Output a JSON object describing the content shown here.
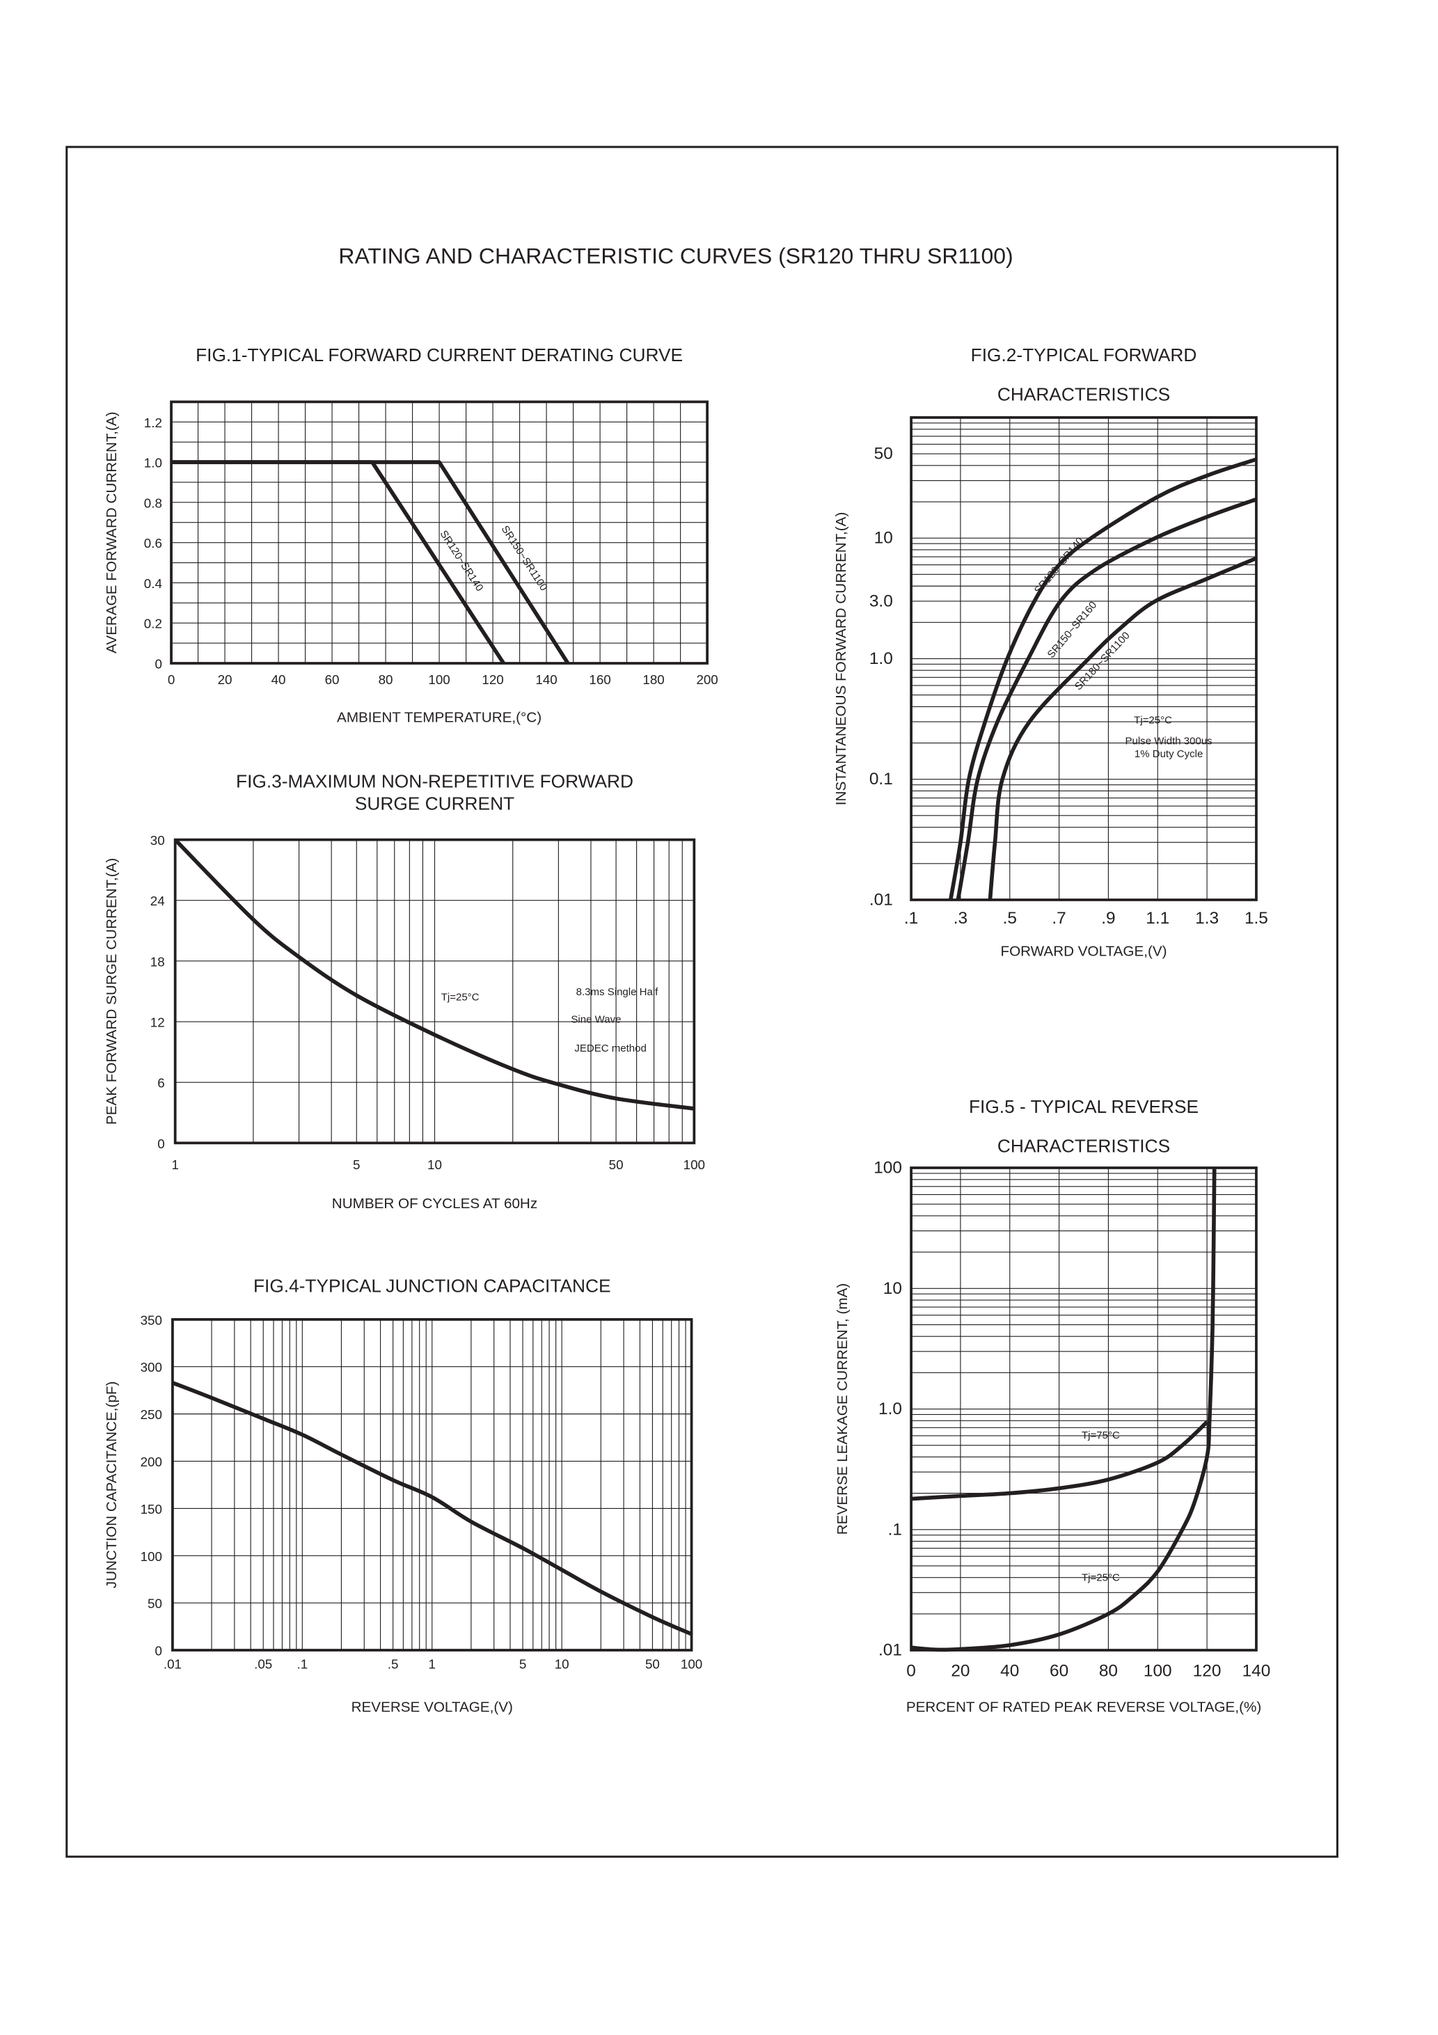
{
  "page": {
    "title": "RATING AND CHARACTERISTIC CURVES (SR120 THRU SR1100)"
  },
  "chart_data": [
    {
      "type": "line",
      "title_lines": [
        "FIG.1-TYPICAL FORWARD CURRENT DERATING CURVE"
      ],
      "xlabel": "AMBIENT TEMPERATURE,(°C)",
      "ylabel": "AVERAGE FORWARD CURRENT,(A)",
      "xscale": "linear",
      "yscale": "linear",
      "xlim": [
        0,
        200
      ],
      "ylim": [
        0,
        1.3
      ],
      "xticks": [
        0,
        20,
        40,
        60,
        80,
        100,
        120,
        140,
        160,
        180,
        200
      ],
      "xtick_labels": [
        "0",
        "20",
        "40",
        "60",
        "80",
        "100",
        "120",
        "140",
        "160",
        "180",
        "200"
      ],
      "yticks": [
        0,
        0.2,
        0.4,
        0.6,
        0.8,
        1.0,
        1.2
      ],
      "ytick_labels": [
        "0",
        "0.2",
        "0.4",
        "0.6",
        "0.8",
        "1.0",
        "1.2"
      ],
      "grid": true,
      "series": [
        {
          "name": "SR120~SR140",
          "x": [
            0,
            75,
            124
          ],
          "y": [
            1.0,
            1.0,
            0
          ]
        },
        {
          "name": "SR150~SR1100",
          "x": [
            0,
            100,
            148
          ],
          "y": [
            1.0,
            1.0,
            0
          ]
        }
      ],
      "annotations": []
    },
    {
      "type": "line",
      "title_lines": [
        "FIG.2-TYPICAL FORWARD",
        "CHARACTERISTICS"
      ],
      "xlabel": "FORWARD VOLTAGE,(V)",
      "ylabel": "INSTANTANEOUS FORWARD CURRENT,(A)",
      "xscale": "linear",
      "yscale": "log",
      "xlim": [
        0.1,
        1.5
      ],
      "ylim": [
        0.01,
        100
      ],
      "xticks": [
        0.1,
        0.3,
        0.5,
        0.7,
        0.9,
        1.1,
        1.3,
        1.5
      ],
      "xtick_labels": [
        ".1",
        ".3",
        ".5",
        ".7",
        ".9",
        "1.1",
        "1.3",
        "1.5"
      ],
      "yticks": [
        0.01,
        0.1,
        1.0,
        3.0,
        10,
        50
      ],
      "ytick_labels": [
        ".01",
        "0.1",
        "1.0",
        "3.0",
        "10",
        "50"
      ],
      "grid": true,
      "series": [
        {
          "name": "SR120~SR140",
          "x": [
            0.26,
            0.3,
            0.334,
            0.4,
            0.49,
            0.6,
            0.7,
            0.83,
            1.1,
            1.3,
            1.5
          ],
          "y": [
            0.01,
            0.03,
            0.1,
            0.3,
            1.0,
            3.0,
            6.0,
            10,
            22,
            33,
            45
          ]
        },
        {
          "name": "SR150~SR160",
          "x": [
            0.29,
            0.33,
            0.37,
            0.45,
            0.575,
            0.706,
            0.85,
            1.09,
            1.3,
            1.5
          ],
          "y": [
            0.01,
            0.03,
            0.1,
            0.3,
            1.0,
            3.0,
            5.5,
            10,
            15,
            21
          ]
        },
        {
          "name": "SR180~SR1100",
          "x": [
            0.42,
            0.44,
            0.47,
            0.58,
            0.82,
            0.95,
            1.09,
            1.3,
            1.5
          ],
          "y": [
            0.01,
            0.03,
            0.1,
            0.3,
            1.0,
            1.8,
            3.0,
            4.6,
            6.8
          ]
        }
      ],
      "annotations": [
        "Tj=25°C",
        "Pulse Width 300us",
        "1% Duty Cycle"
      ]
    },
    {
      "type": "line",
      "title_lines": [
        "FIG.3-MAXIMUM NON-REPETITIVE FORWARD",
        "SURGE CURRENT"
      ],
      "xlabel": "NUMBER OF CYCLES AT 60Hz",
      "ylabel": "PEAK FORWARD SURGE CURRENT,(A)",
      "xscale": "log",
      "yscale": "linear",
      "xlim": [
        1,
        100
      ],
      "ylim": [
        0,
        30
      ],
      "xticks": [
        1,
        5,
        10,
        50,
        100
      ],
      "xtick_labels": [
        "1",
        "5",
        "10",
        "50",
        "100"
      ],
      "yticks": [
        0,
        6,
        12,
        18,
        24,
        30
      ],
      "ytick_labels": [
        "0",
        "6",
        "12",
        "18",
        "24",
        "30"
      ],
      "grid": true,
      "series": [
        {
          "x": [
            1,
            2,
            3,
            5,
            10,
            20,
            30,
            50,
            100
          ],
          "y": [
            30,
            22.1,
            18.4,
            14.6,
            10.7,
            7.3,
            5.8,
            4.4,
            3.4
          ]
        }
      ],
      "annotations": [
        "Tj=25°C",
        "8.3ms Single Half",
        "Sine Wave",
        "JEDEC method"
      ]
    },
    {
      "type": "line",
      "title_lines": [
        "FIG.4-TYPICAL JUNCTION CAPACITANCE"
      ],
      "xlabel": "REVERSE VOLTAGE,(V)",
      "ylabel": "JUNCTION CAPACITANCE,(pF)",
      "xscale": "log",
      "yscale": "linear",
      "xlim": [
        0.01,
        100
      ],
      "ylim": [
        0,
        350
      ],
      "xticks": [
        0.01,
        0.05,
        0.1,
        0.5,
        1,
        5,
        10,
        50,
        100
      ],
      "xtick_labels": [
        ".01",
        ".05",
        ".1",
        ".5",
        "1",
        "5",
        "10",
        "50",
        "100"
      ],
      "yticks": [
        0,
        50,
        100,
        150,
        200,
        250,
        300,
        350
      ],
      "ytick_labels": [
        "0",
        "50",
        "100",
        "150",
        "200",
        "250",
        "300",
        "350"
      ],
      "grid": true,
      "series": [
        {
          "x": [
            0.01,
            0.02,
            0.05,
            0.1,
            0.2,
            0.5,
            1,
            2,
            5,
            10,
            20,
            50,
            100
          ],
          "y": [
            283,
            267,
            245,
            228,
            207,
            180,
            162,
            136,
            108,
            85,
            62,
            35,
            17
          ]
        }
      ],
      "annotations": []
    },
    {
      "type": "line",
      "title_lines": [
        "FIG.5 - TYPICAL REVERSE",
        "CHARACTERISTICS"
      ],
      "xlabel": "PERCENT OF RATED PEAK REVERSE VOLTAGE,(%)",
      "ylabel": "REVERSE LEAKAGE CURRENT, (mA)",
      "xscale": "linear",
      "yscale": "log",
      "xlim": [
        0,
        140
      ],
      "ylim": [
        0.01,
        100
      ],
      "xticks": [
        0,
        20,
        40,
        60,
        80,
        100,
        120,
        140
      ],
      "xtick_labels": [
        "0",
        "20",
        "40",
        "60",
        "80",
        "100",
        "120",
        "140"
      ],
      "yticks": [
        0.01,
        0.1,
        1.0,
        10,
        100
      ],
      "ytick_labels": [
        ".01",
        ".1",
        "1.0",
        "10",
        "100"
      ],
      "grid": true,
      "series": [
        {
          "name": "Tj=75°C",
          "x": [
            0,
            20,
            40,
            60,
            80,
            100,
            110,
            120
          ],
          "y": [
            0.18,
            0.19,
            0.2,
            0.22,
            0.26,
            0.36,
            0.5,
            0.78
          ]
        },
        {
          "name": "Tj=25°C",
          "x": [
            0,
            10,
            20,
            40,
            60,
            80,
            90,
            100,
            110,
            115,
            120,
            121,
            122,
            122.5,
            123
          ],
          "y": [
            0.0105,
            0.0101,
            0.0102,
            0.011,
            0.0135,
            0.02,
            0.028,
            0.045,
            0.1,
            0.17,
            0.4,
            0.78,
            3,
            10,
            100
          ]
        }
      ],
      "annotations": []
    }
  ]
}
